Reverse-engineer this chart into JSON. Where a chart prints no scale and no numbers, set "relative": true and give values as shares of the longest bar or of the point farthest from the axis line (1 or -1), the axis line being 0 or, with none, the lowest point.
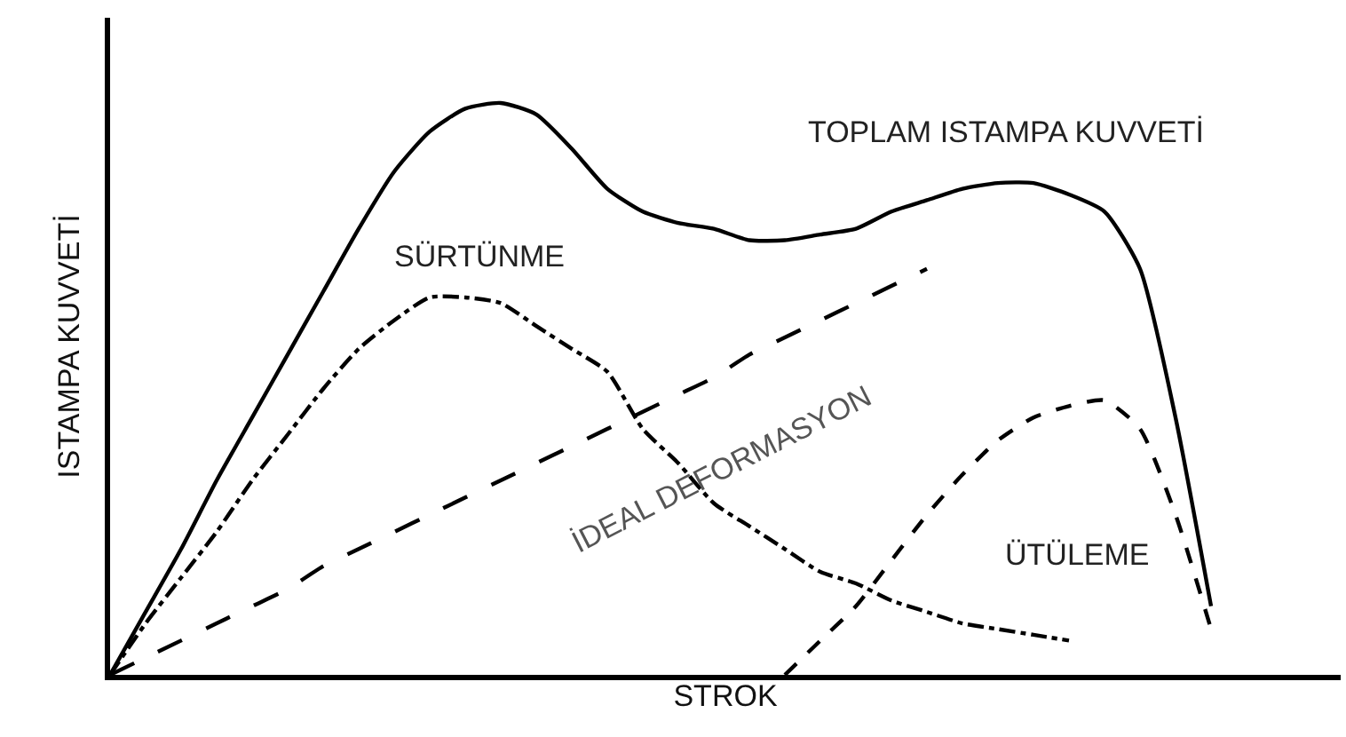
{
  "chart_data": {
    "type": "line",
    "relative": true,
    "xlabel": "STROK",
    "ylabel": "ISTAMPA KUVVETİ",
    "legend": false,
    "marker": "none",
    "categories": [
      null,
      null,
      null,
      null,
      null,
      null,
      null,
      null,
      null,
      null,
      null,
      null,
      null,
      null,
      null,
      null,
      null,
      null,
      null,
      null,
      null,
      null,
      null,
      null,
      null,
      null,
      null,
      null,
      null,
      null,
      null,
      null
    ],
    "series": [
      {
        "name": "TOPLAM ISTAMPA KUVVETİ",
        "color": "#000000",
        "line_style": "solid",
        "values": [
          0,
          0.11,
          0.22,
          0.34,
          0.45,
          0.56,
          0.67,
          0.78,
          0.88,
          0.95,
          0.99,
          1.0,
          0.98,
          0.92,
          0.85,
          0.81,
          0.79,
          0.78,
          0.76,
          0.76,
          0.77,
          0.78,
          0.81,
          0.83,
          0.85,
          0.86,
          0.86,
          0.84,
          0.81,
          0.71,
          0.45,
          0.12
        ]
      },
      {
        "name": "SÜRTÜNME",
        "color": "#000000",
        "line_style": "dashdot",
        "values": [
          0,
          0.09,
          0.17,
          0.25,
          0.34,
          0.42,
          0.5,
          0.57,
          0.62,
          0.66,
          0.66,
          0.65,
          0.61,
          0.57,
          0.53,
          0.43,
          0.37,
          0.3,
          0.26,
          0.22,
          0.18,
          0.16,
          0.13,
          0.11,
          0.09,
          0.08,
          0.07,
          0.06,
          null,
          null,
          null,
          null
        ]
      },
      {
        "name": "İDEAL DEFORMASYON",
        "color": "#000000",
        "line_style": "longdash",
        "values": [
          0,
          0.03,
          0.06,
          0.09,
          0.12,
          0.15,
          0.19,
          0.22,
          0.25,
          0.28,
          0.31,
          0.34,
          0.37,
          0.4,
          0.43,
          0.46,
          0.49,
          0.52,
          0.56,
          0.59,
          0.62,
          0.65,
          0.68,
          0.71,
          null,
          null,
          null,
          null,
          null,
          null,
          null,
          null
        ]
      },
      {
        "name": "ÜTÜLEME",
        "color": "#000000",
        "line_style": "dashed",
        "values": [
          null,
          null,
          null,
          null,
          null,
          null,
          null,
          null,
          null,
          null,
          null,
          null,
          null,
          null,
          null,
          null,
          null,
          null,
          null,
          0,
          0.06,
          0.12,
          0.2,
          0.28,
          0.35,
          0.41,
          0.45,
          0.47,
          0.48,
          0.43,
          0.28,
          0.08
        ]
      }
    ]
  }
}
